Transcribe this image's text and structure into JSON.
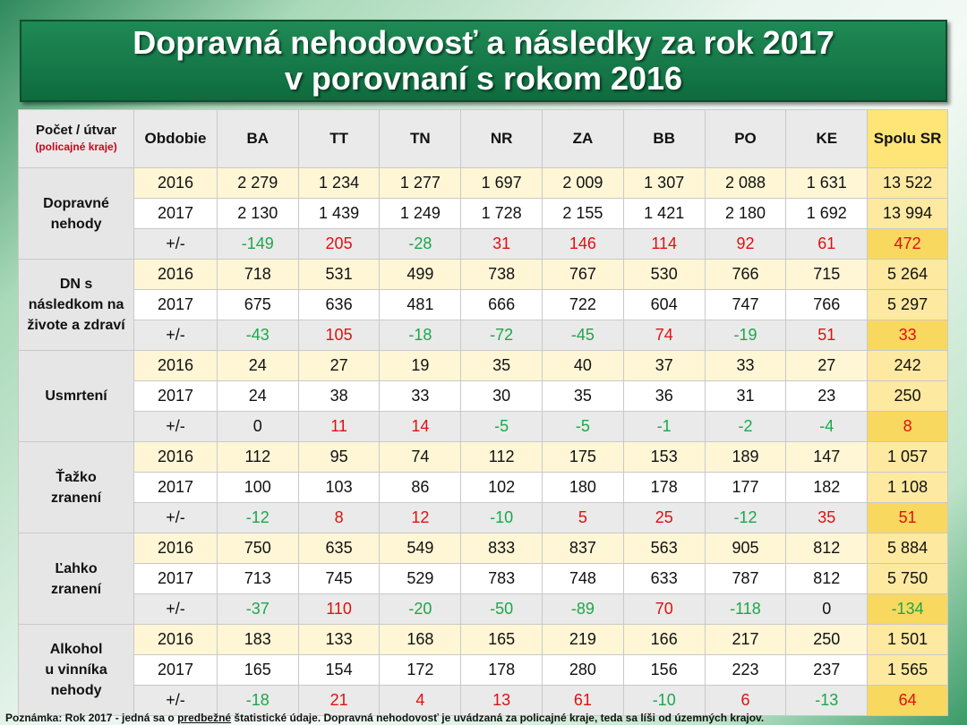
{
  "title": {
    "line1": "Dopravná nehodovosť a následky za rok 2017",
    "line2": "v porovnaní s rokom 2016"
  },
  "headers": {
    "unit": "Počet / útvar",
    "unit_sub": "(policajné kraje)",
    "period": "Obdobie",
    "regions": [
      "BA",
      "TT",
      "TN",
      "NR",
      "ZA",
      "BB",
      "PO",
      "KE"
    ],
    "total": "Spolu SR"
  },
  "groups": [
    {
      "label_lines": [
        "Dopravné",
        "nehody"
      ],
      "rows": [
        {
          "period": "2016",
          "values": [
            "2 279",
            "1 234",
            "1 277",
            "1 697",
            "2 009",
            "1 307",
            "2 088",
            "1 631"
          ],
          "total": "13 522"
        },
        {
          "period": "2017",
          "values": [
            "2 130",
            "1 439",
            "1 249",
            "1 728",
            "2 155",
            "1 421",
            "2 180",
            "1 692"
          ],
          "total": "13 994"
        },
        {
          "period": "+/-",
          "values": [
            "-149",
            "205",
            "-28",
            "31",
            "146",
            "114",
            "92",
            "61"
          ],
          "total": "472"
        }
      ]
    },
    {
      "label_lines": [
        "DN s",
        "následkom na",
        "živote a zdraví"
      ],
      "rows": [
        {
          "period": "2016",
          "values": [
            "718",
            "531",
            "499",
            "738",
            "767",
            "530",
            "766",
            "715"
          ],
          "total": "5 264"
        },
        {
          "period": "2017",
          "values": [
            "675",
            "636",
            "481",
            "666",
            "722",
            "604",
            "747",
            "766"
          ],
          "total": "5 297"
        },
        {
          "period": "+/-",
          "values": [
            "-43",
            "105",
            "-18",
            "-72",
            "-45",
            "74",
            "-19",
            "51"
          ],
          "total": "33"
        }
      ]
    },
    {
      "label_lines": [
        "Usmrtení"
      ],
      "rows": [
        {
          "period": "2016",
          "values": [
            "24",
            "27",
            "19",
            "35",
            "40",
            "37",
            "33",
            "27"
          ],
          "total": "242"
        },
        {
          "period": "2017",
          "values": [
            "24",
            "38",
            "33",
            "30",
            "35",
            "36",
            "31",
            "23"
          ],
          "total": "250"
        },
        {
          "period": "+/-",
          "values": [
            "0",
            "11",
            "14",
            "-5",
            "-5",
            "-1",
            "-2",
            "-4"
          ],
          "total": "8"
        }
      ]
    },
    {
      "label_lines": [
        "Ťažko",
        "zranení"
      ],
      "rows": [
        {
          "period": "2016",
          "values": [
            "112",
            "95",
            "74",
            "112",
            "175",
            "153",
            "189",
            "147"
          ],
          "total": "1 057"
        },
        {
          "period": "2017",
          "values": [
            "100",
            "103",
            "86",
            "102",
            "180",
            "178",
            "177",
            "182"
          ],
          "total": "1 108"
        },
        {
          "period": "+/-",
          "values": [
            "-12",
            "8",
            "12",
            "-10",
            "5",
            "25",
            "-12",
            "35"
          ],
          "total": "51"
        }
      ]
    },
    {
      "label_lines": [
        "Ľahko",
        "zranení"
      ],
      "rows": [
        {
          "period": "2016",
          "values": [
            "750",
            "635",
            "549",
            "833",
            "837",
            "563",
            "905",
            "812"
          ],
          "total": "5 884"
        },
        {
          "period": "2017",
          "values": [
            "713",
            "745",
            "529",
            "783",
            "748",
            "633",
            "787",
            "812"
          ],
          "total": "5 750"
        },
        {
          "period": "+/-",
          "values": [
            "-37",
            "110",
            "-20",
            "-50",
            "-89",
            "70",
            "-118",
            "0"
          ],
          "total": "-134"
        }
      ]
    },
    {
      "label_lines": [
        "Alkohol",
        "u vinníka",
        "nehody"
      ],
      "rows": [
        {
          "period": "2016",
          "values": [
            "183",
            "133",
            "168",
            "165",
            "219",
            "166",
            "217",
            "250"
          ],
          "total": "1 501"
        },
        {
          "period": "2017",
          "values": [
            "165",
            "154",
            "172",
            "178",
            "280",
            "156",
            "223",
            "237"
          ],
          "total": "1 565"
        },
        {
          "period": "+/-",
          "values": [
            "-18",
            "21",
            "4",
            "13",
            "61",
            "-10",
            "6",
            "-13"
          ],
          "total": "64"
        }
      ]
    }
  ],
  "note": {
    "prefix": "Poznámka: Rok 2017 - jedná sa o ",
    "underlined": "predbežné",
    "suffix": " štatistické údaje. Dopravná nehodovosť je uvádzaná za policajné kraje, teda sa líši od územných krajov."
  },
  "colors": {
    "title_bg": "#0e6b3e",
    "negative": "#1aa84a",
    "positive": "#e01010",
    "total_col": "#fde9a0",
    "row_2016": "#fff6d6"
  }
}
